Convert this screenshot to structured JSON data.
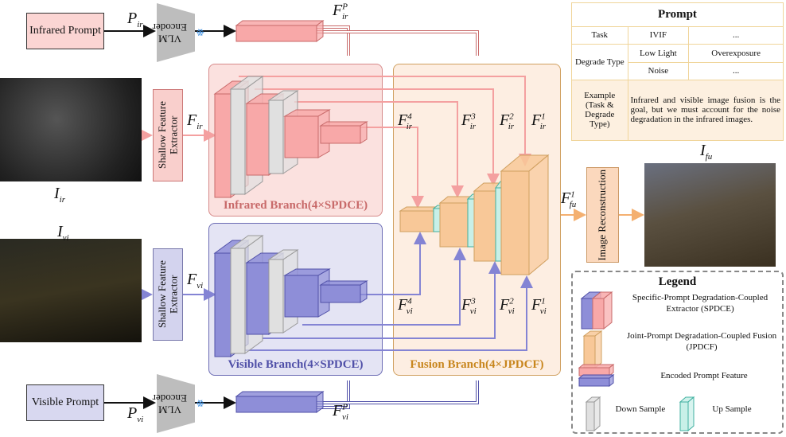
{
  "prompts": {
    "infrared": "Infrared Prompt",
    "visible": "Visible Prompt"
  },
  "encoder": {
    "label": "VLM Encoder",
    "icon": "snowflake-icon"
  },
  "shallow": {
    "ir": "Shallow Feature Extractor",
    "vi": "Shallow Feature Extractor"
  },
  "branches": {
    "infrared": "Infrared Branch(4×SPDCE)",
    "visible": "Visible Branch(4×SPDCE)",
    "fusion": "Fusion Branch(4×JPDCF)"
  },
  "reconstruction": "Image Reconstruction",
  "labels": {
    "P_ir": {
      "b": "P",
      "sub": "ir",
      "sup": ""
    },
    "P_vi": {
      "b": "P",
      "sub": "vi",
      "sup": ""
    },
    "F_irP": {
      "b": "F",
      "sub": "ir",
      "sup": "P"
    },
    "F_viP": {
      "b": "F",
      "sub": "vi",
      "sup": "P"
    },
    "F_ir": {
      "b": "F",
      "sub": "ir",
      "sup": ""
    },
    "F_vi": {
      "b": "F",
      "sub": "vi",
      "sup": ""
    },
    "I_ir": {
      "b": "I",
      "sub": "ir",
      "sup": ""
    },
    "I_vi": {
      "b": "I",
      "sub": "vi",
      "sup": ""
    },
    "I_fu": {
      "b": "I",
      "sub": "fu",
      "sup": ""
    },
    "F_ir4": {
      "b": "F",
      "sub": "ir",
      "sup": "4"
    },
    "F_ir3": {
      "b": "F",
      "sub": "ir",
      "sup": "3"
    },
    "F_ir2": {
      "b": "F",
      "sub": "ir",
      "sup": "2"
    },
    "F_ir1": {
      "b": "F",
      "sub": "ir",
      "sup": "1"
    },
    "F_vi4": {
      "b": "F",
      "sub": "vi",
      "sup": "4"
    },
    "F_vi3": {
      "b": "F",
      "sub": "vi",
      "sup": "3"
    },
    "F_vi2": {
      "b": "F",
      "sub": "vi",
      "sup": "2"
    },
    "F_vi1": {
      "b": "F",
      "sub": "vi",
      "sup": "1"
    },
    "F_fu1": {
      "b": "F",
      "sub": "fu",
      "sup": "1"
    }
  },
  "table": {
    "title": "Prompt",
    "task_label": "Task",
    "task_values": [
      "IVIF",
      "..."
    ],
    "degrade_label": "Degrade Type",
    "degrade_values": [
      "Low Light",
      "Overexposure",
      "Noise",
      "..."
    ],
    "example_label": "Example (Task & Degrade Type)",
    "example_text": "Infrared and visible image fusion is the goal, but we must account for the noise degradation in the infrared images."
  },
  "legend": {
    "title": "Legend",
    "spdce": "Specific-Prompt Degradation-Coupled Extractor (SPDCE)",
    "jpdcf": "Joint-Prompt Degradation-Coupled Fusion (JPDCF)",
    "encoded": "Encoded Prompt Feature",
    "down": "Down Sample",
    "up": "Up Sample"
  },
  "colors": {
    "infrared": "#f8a8a8",
    "visible": "#8e8ed8",
    "fusion": "#f8c898",
    "down": "#e0e0e0",
    "up": "#c8f0e8"
  }
}
